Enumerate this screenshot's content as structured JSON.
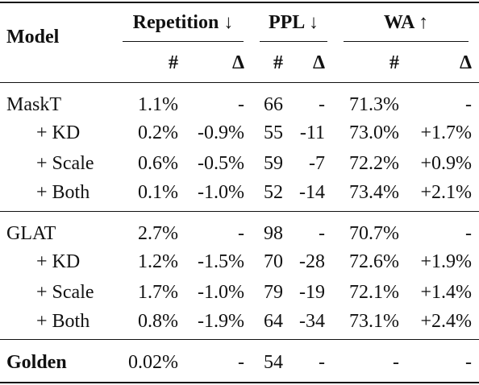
{
  "header": {
    "model": "Model",
    "groups": [
      {
        "label": "Repetition",
        "arrow": "↓"
      },
      {
        "label": "PPL",
        "arrow": "↓"
      },
      {
        "label": "WA",
        "arrow": "↑"
      }
    ],
    "sub": [
      "#",
      "Δ",
      "#",
      "Δ",
      "#",
      "Δ"
    ]
  },
  "sections": [
    {
      "rows": [
        {
          "model": "MaskT",
          "cells": [
            "1.1%",
            "-",
            "66",
            "-",
            "71.3%",
            "-"
          ]
        },
        {
          "model": "+ KD",
          "cells": [
            "0.2%",
            "-0.9%",
            "55",
            "-11",
            "73.0%",
            "+1.7%"
          ]
        },
        {
          "model": "+ Scale",
          "cells": [
            "0.6%",
            "-0.5%",
            "59",
            "-7",
            "72.2%",
            "+0.9%"
          ]
        },
        {
          "model": "+ Both",
          "cells": [
            "0.1%",
            "-1.0%",
            "52",
            "-14",
            "73.4%",
            "+2.1%"
          ]
        }
      ]
    },
    {
      "rows": [
        {
          "model": "GLAT",
          "cells": [
            "2.7%",
            "-",
            "98",
            "-",
            "70.7%",
            "-"
          ]
        },
        {
          "model": "+ KD",
          "cells": [
            "1.2%",
            "-1.5%",
            "70",
            "-28",
            "72.6%",
            "+1.9%"
          ]
        },
        {
          "model": "+ Scale",
          "cells": [
            "1.7%",
            "-1.0%",
            "79",
            "-19",
            "72.1%",
            "+1.4%"
          ]
        },
        {
          "model": "+ Both",
          "cells": [
            "0.8%",
            "-1.9%",
            "64",
            "-34",
            "73.1%",
            "+2.4%"
          ]
        }
      ]
    },
    {
      "rows": [
        {
          "model": "Golden",
          "cells": [
            "0.02%",
            "-",
            "54",
            "-",
            "-",
            "-"
          ]
        }
      ]
    }
  ]
}
